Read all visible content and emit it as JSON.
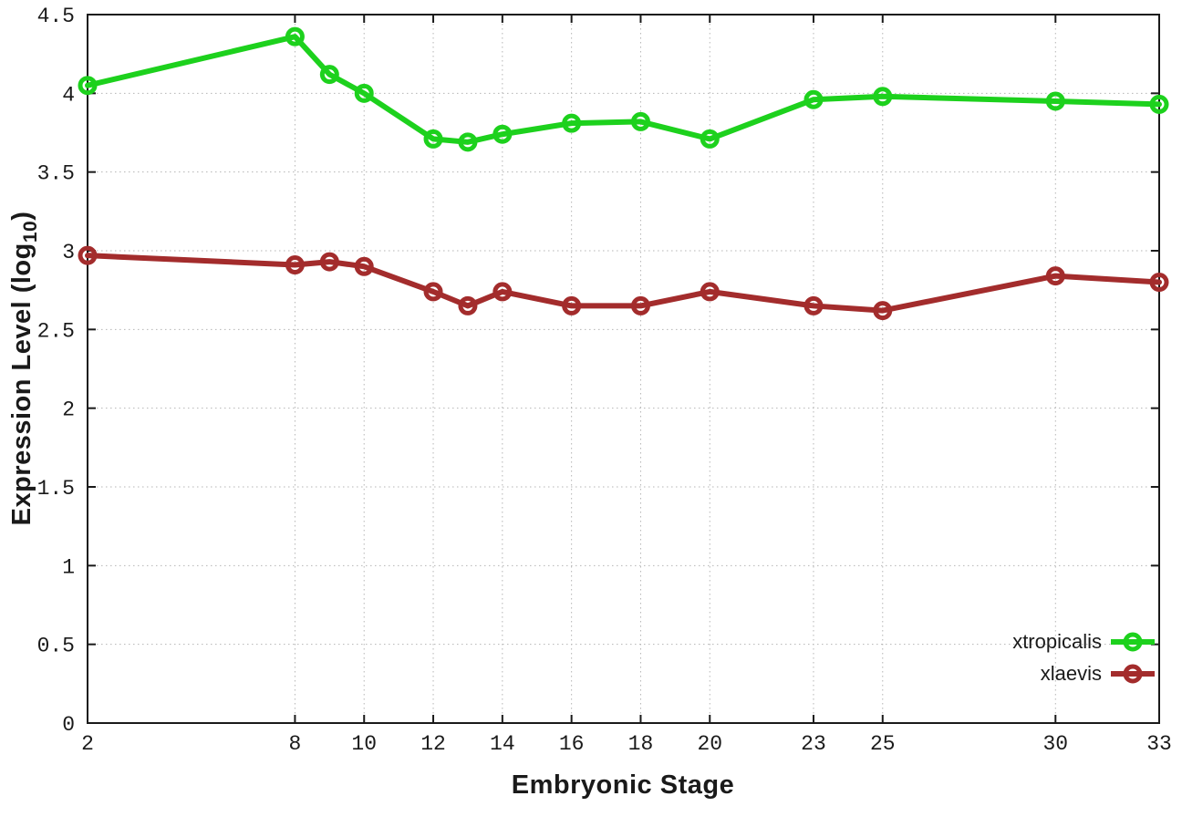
{
  "figure": {
    "xlabel": "Embryonic Stage",
    "ylabel_prefix": "Expression Level (log",
    "ylabel_sub": "10",
    "ylabel_suffix": ")"
  },
  "chart_data": {
    "type": "line",
    "title": "",
    "xlabel": "Embryonic Stage",
    "ylabel": "Expression Level (log10)",
    "x": [
      2,
      8,
      9,
      10,
      12,
      13,
      14,
      16,
      18,
      20,
      23,
      25,
      30,
      33
    ],
    "series": [
      {
        "name": "xtropicalis",
        "color": "#1dd11d",
        "values": [
          4.05,
          4.36,
          4.12,
          4.0,
          3.71,
          3.69,
          3.74,
          3.81,
          3.82,
          3.71,
          3.96,
          3.98,
          3.95,
          3.93
        ]
      },
      {
        "name": "xlaevis",
        "color": "#a32c2c",
        "values": [
          2.97,
          2.91,
          2.93,
          2.9,
          2.74,
          2.65,
          2.74,
          2.65,
          2.65,
          2.74,
          2.65,
          2.62,
          2.84,
          2.8
        ]
      }
    ],
    "xlim": [
      2,
      33
    ],
    "ylim": [
      0,
      4.5
    ],
    "xticks": [
      2,
      8,
      10,
      12,
      14,
      16,
      18,
      20,
      23,
      25,
      30,
      33
    ],
    "xticklabels": [
      "2",
      "8",
      "10",
      "12",
      "14",
      "16",
      "18",
      "20",
      "23",
      "25",
      "30",
      "33"
    ],
    "yticks": [
      0,
      0.5,
      1,
      1.5,
      2,
      2.5,
      3,
      3.5,
      4,
      4.5
    ],
    "yticklabels": [
      "0",
      "0.5",
      "1",
      "1.5",
      "2",
      "2.5",
      "3",
      "3.5",
      "4",
      "4.5"
    ],
    "grid": true,
    "marker": "open-circle",
    "legend_position": "bottom-right"
  },
  "legend": {
    "entries": [
      {
        "label": "xtropicalis",
        "color": "#1dd11d"
      },
      {
        "label": "xlaevis",
        "color": "#a32c2c"
      }
    ]
  },
  "colors": {
    "background": "#ffffff",
    "grid": "#b5b5b5",
    "border": "#1a1a1a",
    "text": "#1a1a1a"
  }
}
